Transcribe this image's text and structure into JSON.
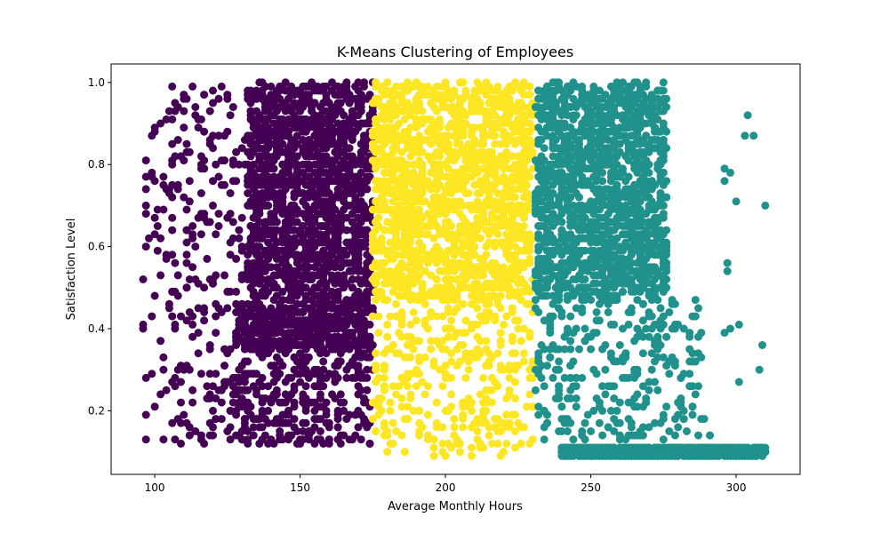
{
  "chart_data": {
    "type": "scatter",
    "title": "K-Means Clustering of Employees",
    "xlabel": "Average Monthly Hours",
    "ylabel": "Satisfaction Level",
    "xlim": [
      85,
      322
    ],
    "ylim": [
      0.045,
      1.045
    ],
    "xticks": [
      100,
      150,
      200,
      250,
      300
    ],
    "yticks": [
      0.2,
      0.4,
      0.6,
      0.8,
      1.0
    ],
    "xtick_labels": [
      "100",
      "150",
      "200",
      "250",
      "300"
    ],
    "ytick_labels": [
      "0.2",
      "0.4",
      "0.6",
      "0.8",
      "1.0"
    ],
    "grid": false,
    "legend": "none",
    "marker_radius": 4.5,
    "series": [
      {
        "color": "#440154",
        "regions": [
          {
            "x": [
              96,
              132
            ],
            "y": [
              0.12,
              1.0
            ],
            "n": 300
          },
          {
            "x": [
              128,
              175
            ],
            "y": [
              0.12,
              0.35
            ],
            "n": 300
          },
          {
            "x": [
              128,
              175
            ],
            "y": [
              0.35,
              0.45
            ],
            "n": 500
          },
          {
            "x": [
              132,
              175
            ],
            "y": [
              0.45,
              1.0
            ],
            "n": 1500
          }
        ]
      },
      {
        "color": "#fde725",
        "regions": [
          {
            "x": [
              175,
              230
            ],
            "y": [
              0.47,
              1.0
            ],
            "n": 1500
          },
          {
            "x": [
              175,
              230
            ],
            "y": [
              0.09,
              0.47
            ],
            "n": 350
          }
        ]
      },
      {
        "color": "#21918c",
        "regions": [
          {
            "x": [
              231,
              276
            ],
            "y": [
              0.47,
              1.0
            ],
            "n": 1500
          },
          {
            "x": [
              231,
              288
            ],
            "y": [
              0.12,
              0.47
            ],
            "n": 300
          },
          {
            "x": [
              240,
              310
            ],
            "y": [
              0.09,
              0.11
            ],
            "n": 900
          }
        ],
        "points": [
          [
            304,
            0.92
          ],
          [
            303,
            0.87
          ],
          [
            306,
            0.87
          ],
          [
            310,
            0.7
          ],
          [
            300,
            0.71
          ],
          [
            296,
            0.79
          ],
          [
            298,
            0.78
          ],
          [
            296,
            0.76
          ],
          [
            297,
            0.56
          ],
          [
            297,
            0.54
          ],
          [
            301,
            0.41
          ],
          [
            298,
            0.4
          ],
          [
            296,
            0.39
          ],
          [
            301,
            0.27
          ],
          [
            309,
            0.36
          ],
          [
            308,
            0.3
          ],
          [
            291,
            0.14
          ],
          [
            289,
            0.18
          ],
          [
            284,
            0.26
          ]
        ]
      }
    ]
  }
}
